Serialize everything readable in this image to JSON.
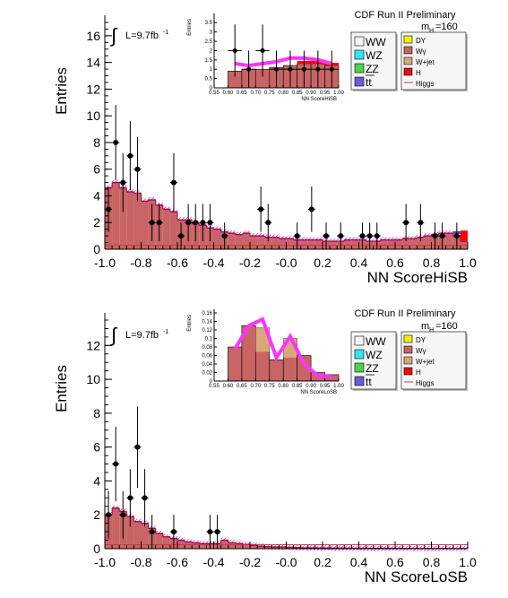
{
  "chart_data": [
    {
      "type": "bar",
      "header": "CDF Run II Preliminary",
      "mass_label": "m",
      "mass_sub": "H",
      "mass_value": "=160",
      "lumi_text": "L=9.7fb",
      "lumi_sup": "-1",
      "integral_symbol": "∫",
      "ylabel": "Entries",
      "xlabel": "NN ScoreHiSB",
      "xlim": [
        -1.0,
        1.0
      ],
      "ylim": [
        0,
        17
      ],
      "xticks": [
        "-1.0",
        "-0.8",
        "-0.6",
        "-0.4",
        "-0.2",
        "-0.0",
        "0.2",
        "0.4",
        "0.6",
        "0.8",
        "1.0"
      ],
      "yticks": [
        "0",
        "2",
        "4",
        "6",
        "8",
        "10",
        "12",
        "14",
        "16"
      ],
      "bin_edges_start": -1.0,
      "bin_width": 0.04,
      "background_total": [
        4.6,
        5.0,
        4.6,
        4.3,
        4.2,
        3.6,
        3.7,
        3.3,
        3.0,
        2.8,
        2.2,
        2.2,
        1.9,
        1.8,
        1.6,
        1.5,
        1.3,
        1.2,
        1.1,
        1.2,
        1.0,
        1.0,
        0.9,
        0.9,
        0.8,
        0.8,
        0.7,
        0.7,
        0.7,
        0.7,
        0.6,
        0.6,
        0.6,
        0.7,
        0.7,
        0.7,
        0.6,
        0.6,
        0.7,
        0.7,
        0.7,
        0.8,
        0.8,
        0.9,
        1.0,
        1.1,
        1.2,
        1.2,
        1.0,
        0.6
      ],
      "data_points": [
        {
          "x": -0.98,
          "y": 3,
          "err": 1.7
        },
        {
          "x": -0.94,
          "y": 8,
          "err": 2.8
        },
        {
          "x": -0.9,
          "y": 5,
          "err": 2.2
        },
        {
          "x": -0.86,
          "y": 7,
          "err": 2.6
        },
        {
          "x": -0.82,
          "y": 6,
          "err": 2.4
        },
        {
          "x": -0.74,
          "y": 2,
          "err": 1.4
        },
        {
          "x": -0.7,
          "y": 2,
          "err": 1.4
        },
        {
          "x": -0.62,
          "y": 5,
          "err": 2.2
        },
        {
          "x": -0.58,
          "y": 1,
          "err": 1.0
        },
        {
          "x": -0.54,
          "y": 2,
          "err": 1.4
        },
        {
          "x": -0.5,
          "y": 2,
          "err": 1.4
        },
        {
          "x": -0.46,
          "y": 2,
          "err": 1.4
        },
        {
          "x": -0.42,
          "y": 2,
          "err": 1.4
        },
        {
          "x": -0.34,
          "y": 1,
          "err": 1.0
        },
        {
          "x": -0.14,
          "y": 3,
          "err": 1.7
        },
        {
          "x": -0.1,
          "y": 2,
          "err": 1.4
        },
        {
          "x": 0.06,
          "y": 1,
          "err": 1.0
        },
        {
          "x": 0.14,
          "y": 3,
          "err": 1.7
        },
        {
          "x": 0.22,
          "y": 1,
          "err": 1.0
        },
        {
          "x": 0.3,
          "y": 1,
          "err": 1.0
        },
        {
          "x": 0.42,
          "y": 1,
          "err": 1.0
        },
        {
          "x": 0.46,
          "y": 1,
          "err": 1.0
        },
        {
          "x": 0.5,
          "y": 1,
          "err": 1.0
        },
        {
          "x": 0.66,
          "y": 2,
          "err": 1.4
        },
        {
          "x": 0.74,
          "y": 2,
          "err": 1.4
        },
        {
          "x": 0.82,
          "y": 1,
          "err": 1.0
        },
        {
          "x": 0.86,
          "y": 1,
          "err": 1.0
        },
        {
          "x": 0.94,
          "y": 1,
          "err": 1.0
        }
      ],
      "inset": {
        "ylabel": "Entries",
        "xlabel": "NN ScoreHiSB",
        "xlim": [
          0.55,
          1.0
        ],
        "ylim": [
          0,
          3.8
        ],
        "xticks": [
          "0.55",
          "0.60",
          "0.65",
          "0.70",
          "0.75",
          "0.80",
          "0.85",
          "0.90",
          "0.95",
          "1.00"
        ],
        "yticks": [
          "0",
          "0.5",
          "1",
          "1.5",
          "2",
          "2.5",
          "3",
          "3.5"
        ],
        "bin_edges_start": 0.6,
        "bin_width": 0.05,
        "background_total": [
          0.9,
          1.0,
          1.0,
          1.1,
          1.2,
          1.3,
          1.3,
          1.2
        ],
        "signal_band": [
          1.3,
          1.2,
          1.3,
          1.4,
          1.6,
          1.6,
          1.5,
          1.3
        ],
        "data_points": [
          {
            "x": 0.625,
            "y": 2,
            "err": 1.4
          },
          {
            "x": 0.675,
            "y": 1,
            "err": 1.0
          },
          {
            "x": 0.725,
            "y": 2,
            "err": 1.4
          },
          {
            "x": 0.775,
            "y": 1,
            "err": 1.0
          },
          {
            "x": 0.825,
            "y": 1,
            "err": 1.0
          },
          {
            "x": 0.875,
            "y": 1,
            "err": 1.0
          },
          {
            "x": 0.925,
            "y": 1,
            "err": 1.0
          },
          {
            "x": 0.975,
            "y": 1,
            "err": 1.0
          }
        ]
      }
    },
    {
      "type": "bar",
      "header": "CDF Run II Preliminary",
      "mass_label": "m",
      "mass_sub": "H",
      "mass_value": "=160",
      "lumi_text": "L=9.7fb",
      "lumi_sup": "-1",
      "integral_symbol": "∫",
      "ylabel": "Entries",
      "xlabel": "NN ScoreLoSB",
      "xlim": [
        -1.0,
        1.0
      ],
      "ylim": [
        0,
        13.5
      ],
      "xticks": [
        "-1.0",
        "-0.8",
        "-0.6",
        "-0.4",
        "-0.2",
        "-0.0",
        "0.2",
        "0.4",
        "0.6",
        "0.8",
        "1.0"
      ],
      "yticks": [
        "0",
        "2",
        "4",
        "6",
        "8",
        "10",
        "12"
      ],
      "bin_edges_start": -1.0,
      "bin_width": 0.04,
      "background_total": [
        2.0,
        2.4,
        2.2,
        1.9,
        1.6,
        1.5,
        1.2,
        0.9,
        0.7,
        0.6,
        0.5,
        0.4,
        0.35,
        0.3,
        0.3,
        0.3,
        0.5,
        0.35,
        0.3,
        0.25,
        0.2,
        0.15,
        0.12,
        0.1,
        0.1,
        0.08,
        0.06,
        0.05,
        0.05,
        0.04,
        0.04,
        0.03,
        0.03,
        0.03,
        0.02,
        0.02,
        0.02,
        0.02,
        0.02,
        0.02,
        0.02,
        0.01,
        0.01,
        0.01,
        0.01,
        0.01,
        0.01,
        0.01,
        0.01,
        0.01
      ],
      "data_points": [
        {
          "x": -0.98,
          "y": 2,
          "err": 1.4
        },
        {
          "x": -0.94,
          "y": 5,
          "err": 2.2
        },
        {
          "x": -0.9,
          "y": 2,
          "err": 1.4
        },
        {
          "x": -0.86,
          "y": 3,
          "err": 1.7
        },
        {
          "x": -0.82,
          "y": 6,
          "err": 2.4
        },
        {
          "x": -0.78,
          "y": 3,
          "err": 1.7
        },
        {
          "x": -0.74,
          "y": 1,
          "err": 1.0
        },
        {
          "x": -0.62,
          "y": 1,
          "err": 1.0
        },
        {
          "x": -0.42,
          "y": 1,
          "err": 1.0
        },
        {
          "x": -0.38,
          "y": 1,
          "err": 1.0
        }
      ],
      "inset": {
        "ylabel": "Entries",
        "xlabel": "NN ScoreLoSB",
        "xlim": [
          0.55,
          1.0
        ],
        "ylim": [
          0,
          0.16
        ],
        "xticks": [
          "0.55",
          "0.60",
          "0.65",
          "0.70",
          "0.75",
          "0.80",
          "0.85",
          "0.90",
          "0.95",
          "1.00"
        ],
        "yticks": [
          "0",
          "0.02",
          "0.04",
          "0.06",
          "0.08",
          "0.1",
          "0.12",
          "0.14",
          "0.16"
        ],
        "bin_edges_start": 0.6,
        "bin_width": 0.05,
        "background_total": [
          0.08,
          0.13,
          0.125,
          0.05,
          0.1,
          0.06,
          0.02,
          0.015
        ],
        "signal_band": [
          0.075,
          0.13,
          0.145,
          0.055,
          0.105,
          0.04,
          0.012,
          0.01
        ],
        "data_points": []
      }
    }
  ],
  "legend": {
    "left": [
      {
        "label": "WW",
        "color": "#f4f4f4"
      },
      {
        "label": "WZ",
        "color": "#33e5f2"
      },
      {
        "label": "ZZ",
        "color": "#4bd14b"
      },
      {
        "label": "tt",
        "color": "#6a5bd8",
        "bar": true
      }
    ],
    "right": [
      {
        "label": "DY",
        "color": "#f4f00e",
        "kind": "box"
      },
      {
        "label": "Wγ",
        "color": "#c86464",
        "kind": "box"
      },
      {
        "label": "W+jet",
        "color": "#d9a877",
        "kind": "box"
      },
      {
        "label": "H",
        "color": "#e81010",
        "kind": "box"
      },
      {
        "label": "Higgs",
        "color": "#c43a3a",
        "kind": "line"
      }
    ]
  },
  "colors": {
    "fill_main": "#c86464",
    "fill_edge": "#8c1a1a",
    "band": "#ff33ff",
    "hatch": "#ff33ff",
    "signal_line": "#c43a3a",
    "inset_red": "#ff0000",
    "inset_blue": "#4f42c9",
    "inset_tan": "#d9a877"
  }
}
